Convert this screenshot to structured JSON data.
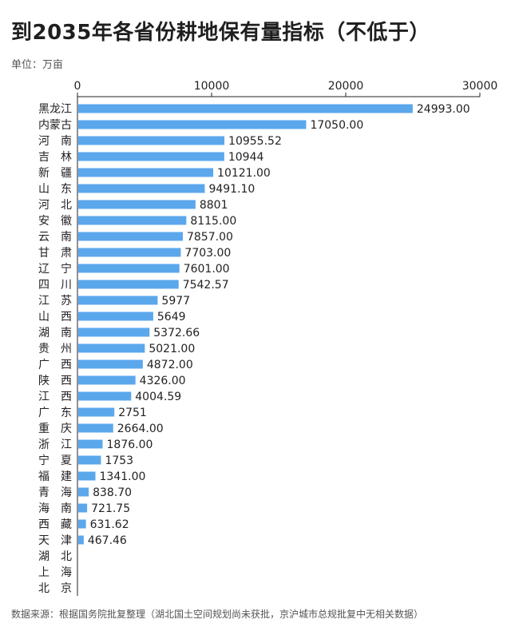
{
  "page": {
    "title": "到2035年各省份耕地保有量指标（不低于）",
    "unit": "单位：万亩",
    "source": "数据来源：根据国务院批复整理（湖北国土空间规划尚未获批，京沪城市总规批复中无相关数据）"
  },
  "colors": {
    "bar": "#5ba7ec",
    "axis": "#222222",
    "text": "#222222"
  },
  "chart_data": {
    "type": "bar",
    "orientation": "horizontal",
    "title": "到2035年各省份耕地保有量指标（不低于）",
    "xlim": [
      0,
      30000
    ],
    "xticks": [
      0,
      10000,
      20000,
      30000
    ],
    "xtick_labels": [
      "0",
      "10000",
      "20000",
      "30000"
    ],
    "axis_position": "top",
    "categories": [
      "黑龙江",
      "内蒙古",
      "河　南",
      "吉　林",
      "新　疆",
      "山　东",
      "河　北",
      "安　徽",
      "云　南",
      "甘　肃",
      "辽　宁",
      "四　川",
      "江　苏",
      "山　西",
      "湖　南",
      "贵　州",
      "广　西",
      "陕　西",
      "江　西",
      "广　东",
      "重　庆",
      "浙　江",
      "宁　夏",
      "福　建",
      "青　海",
      "海　南",
      "西　藏",
      "天　津",
      "湖　北",
      "上　海",
      "北　京"
    ],
    "values": [
      24993,
      17050,
      10955.52,
      10944,
      10121,
      9491.1,
      8801,
      8115,
      7857,
      7703,
      7601,
      7542.57,
      5977,
      5649,
      5372.66,
      5021,
      4872,
      4326,
      4004.59,
      2751,
      2664,
      1876,
      1753,
      1341,
      838.7,
      721.75,
      631.62,
      467.46,
      null,
      null,
      null
    ],
    "value_labels": [
      "24993.00",
      "17050.00",
      "10955.52",
      "10944",
      "10121.00",
      "9491.10",
      "8801",
      "8115.00",
      "7857.00",
      "7703.00",
      "7601.00",
      "7542.57",
      "5977",
      "5649",
      "5372.66",
      "5021.00",
      "4872.00",
      "4326.00",
      "4004.59",
      "2751",
      "2664.00",
      "1876.00",
      "1753",
      "1341.00",
      "838.70",
      "721.75",
      "631.62",
      "467.46",
      "",
      "",
      ""
    ]
  }
}
